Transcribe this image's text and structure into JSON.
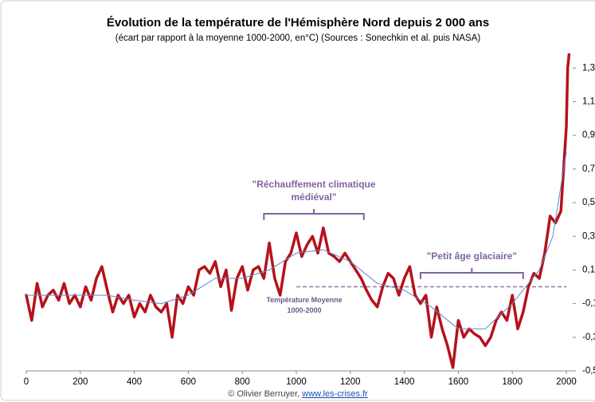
{
  "chart_data": {
    "type": "line",
    "title": "Évolution de la température de l'Hémisphère Nord depuis 2 000 ans",
    "subtitle": "(écart par rapport à la moyenne 1000-2000, en°C) (Sources : Sonechkin et al. puis NASA)",
    "xlim": [
      0,
      2000
    ],
    "xticks": [
      0,
      200,
      400,
      600,
      800,
      1000,
      1200,
      1400,
      1600,
      1800,
      2000
    ],
    "ylim": [
      -0.5,
      1.42
    ],
    "yticks": [
      {
        "value": 1.3,
        "label": "1,3"
      },
      {
        "value": 1.1,
        "label": "1,1"
      },
      {
        "value": 0.9,
        "label": "0,9"
      },
      {
        "value": 0.7,
        "label": "0,7"
      },
      {
        "value": 0.5,
        "label": "0,5"
      },
      {
        "value": 0.3,
        "label": "0,3"
      },
      {
        "value": 0.1,
        "label": "0,1"
      },
      {
        "value": -0.1,
        "label": "-0,1"
      },
      {
        "value": -0.3,
        "label": "-0,3"
      },
      {
        "value": -0.5,
        "label": "-0,5"
      }
    ],
    "series": [
      {
        "color": "#b5121b",
        "x": [
          0,
          20,
          40,
          60,
          80,
          100,
          120,
          140,
          160,
          180,
          200,
          220,
          240,
          260,
          280,
          300,
          320,
          340,
          360,
          380,
          400,
          420,
          440,
          460,
          480,
          500,
          520,
          540,
          560,
          580,
          600,
          620,
          640,
          660,
          680,
          700,
          720,
          740,
          760,
          780,
          800,
          820,
          840,
          860,
          880,
          900,
          920,
          940,
          960,
          980,
          1000,
          1020,
          1040,
          1060,
          1080,
          1100,
          1120,
          1140,
          1160,
          1180,
          1200,
          1220,
          1240,
          1260,
          1280,
          1300,
          1320,
          1340,
          1360,
          1380,
          1400,
          1420,
          1440,
          1460,
          1480,
          1500,
          1520,
          1540,
          1560,
          1580,
          1600,
          1620,
          1640,
          1660,
          1680,
          1700,
          1720,
          1740,
          1760,
          1780,
          1800,
          1820,
          1840,
          1860,
          1880,
          1900,
          1920,
          1940,
          1960,
          1980,
          2000,
          2005,
          2010
        ],
        "values": [
          -0.05,
          -0.2,
          0.02,
          -0.12,
          -0.05,
          -0.02,
          -0.08,
          0.02,
          -0.1,
          -0.05,
          -0.12,
          0.0,
          -0.08,
          0.05,
          0.12,
          -0.02,
          -0.15,
          -0.05,
          -0.1,
          -0.05,
          -0.18,
          -0.1,
          -0.15,
          -0.05,
          -0.12,
          -0.15,
          -0.1,
          -0.3,
          -0.05,
          -0.1,
          0.0,
          -0.05,
          0.1,
          0.12,
          0.08,
          0.15,
          0.0,
          0.1,
          -0.14,
          0.05,
          0.12,
          -0.02,
          0.1,
          0.12,
          0.05,
          0.26,
          0.05,
          -0.05,
          0.15,
          0.2,
          0.32,
          0.18,
          0.25,
          0.3,
          0.2,
          0.35,
          0.2,
          0.18,
          0.15,
          0.2,
          0.15,
          0.1,
          0.05,
          -0.02,
          -0.08,
          -0.12,
          0.0,
          0.08,
          0.05,
          -0.05,
          0.05,
          0.12,
          -0.05,
          -0.1,
          -0.05,
          -0.3,
          -0.12,
          -0.25,
          -0.35,
          -0.48,
          -0.2,
          -0.3,
          -0.25,
          -0.28,
          -0.3,
          -0.35,
          -0.3,
          -0.2,
          -0.15,
          -0.2,
          -0.05,
          -0.25,
          -0.15,
          0.0,
          0.08,
          0.05,
          0.2,
          0.42,
          0.38,
          0.45,
          0.95,
          1.3,
          1.38
        ]
      },
      {
        "color": "#5b8ac6",
        "x": [
          0,
          100,
          200,
          300,
          400,
          500,
          600,
          700,
          800,
          900,
          1000,
          1100,
          1200,
          1300,
          1400,
          1500,
          1600,
          1700,
          1800,
          1900,
          1950,
          2000
        ],
        "values": [
          -0.05,
          -0.05,
          -0.05,
          -0.05,
          -0.08,
          -0.1,
          -0.05,
          0.05,
          0.05,
          0.1,
          0.2,
          0.22,
          0.15,
          0.02,
          -0.02,
          -0.12,
          -0.25,
          -0.25,
          -0.1,
          0.1,
          0.3,
          0.8
        ]
      }
    ],
    "annotations": [
      {
        "lines": [
          "\"Réchauffement climatique",
          "médiéval\""
        ],
        "x": [
          880,
          1250
        ]
      },
      {
        "lines": [
          "\"Petit âge glaciaire\""
        ],
        "x": [
          1460,
          1840
        ]
      }
    ],
    "mean_line": {
      "lines": [
        "Température Moyenne",
        "1000-2000"
      ],
      "x": [
        1000,
        2000
      ],
      "value": 0
    },
    "credit": "© Olivier Berruyer, ",
    "credit_link": "www.les-crises.fr"
  }
}
